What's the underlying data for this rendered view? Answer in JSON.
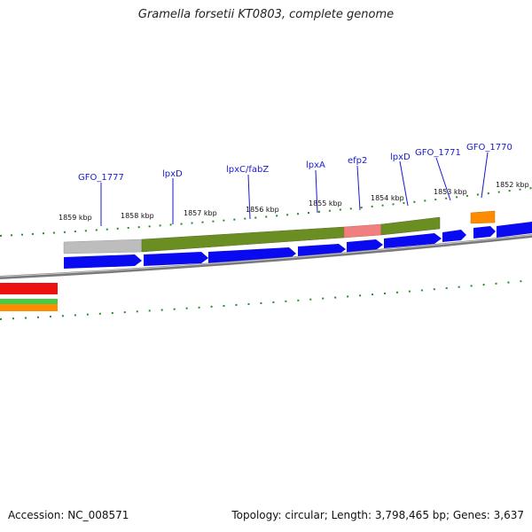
{
  "title": "Gramella forsetii KT0803, complete genome",
  "footer": {
    "accession": "Accession: NC_008571",
    "summary": "Topology: circular; Length: 3,798,465 bp; Genes: 3,637"
  },
  "colors": {
    "background": "#ffffff",
    "gene_label": "#1a1acc",
    "backbone": "#7a7a7a",
    "tick": "#2a8a2a",
    "cds_forward": "#0a0af0",
    "feature_green": "#6b8e23",
    "feature_gray": "#bdbdbd",
    "feature_pink": "#f08080",
    "feature_orange": "#ff8c00",
    "feature_red": "#ee1111",
    "feature_lightgreen": "#44cc44"
  },
  "kbp_labels": [
    "1859 kbp",
    "1858 kbp",
    "1857 kbp",
    "1856 kbp",
    "1855 kbp",
    "1854 kbp",
    "1853 kbp",
    "1852 kbp"
  ],
  "gene_labels": [
    "GFO_1777",
    "lpxD",
    "lpxC/fabZ",
    "lpxA",
    "efp2",
    "lpxD",
    "GFO_1771",
    "GFO_1770"
  ]
}
